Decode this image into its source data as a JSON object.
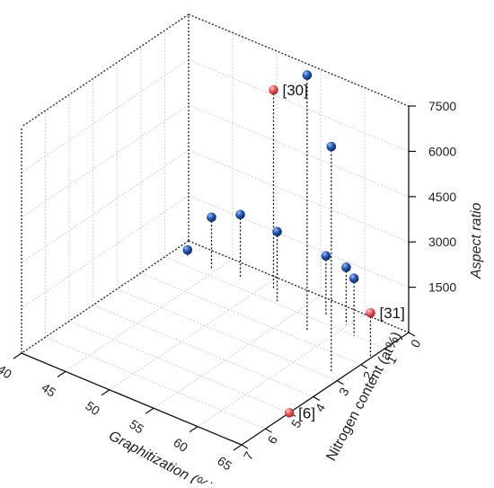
{
  "chart_data": {
    "type": "scatter",
    "title": "",
    "xlabel": "Graphitization (%)",
    "ylabel": "Nitrogen content (at%)",
    "zlabel": "Aspect ratio",
    "xlim": [
      40,
      65
    ],
    "ylim": [
      0,
      7
    ],
    "zlim": [
      0,
      7500
    ],
    "x_ticks": [
      "40",
      "45",
      "50",
      "55",
      "60",
      "65"
    ],
    "y_ticks": [
      "0",
      "1",
      "2",
      "3",
      "4",
      "5",
      "6",
      "7"
    ],
    "z_ticks": [
      "1500",
      "3000",
      "4500",
      "6000",
      "7500"
    ],
    "grid": true,
    "series": [
      {
        "color": "#1f4e9c",
        "points": [
          {
            "x": 41.5,
            "y": 0.6,
            "z": 200
          },
          {
            "x": 44.5,
            "y": 0.7,
            "z": 1700
          },
          {
            "x": 47.5,
            "y": 0.6,
            "z": 2100
          },
          {
            "x": 52.5,
            "y": 0.9,
            "z": 2300
          },
          {
            "x": 57.5,
            "y": 0.7,
            "z": 2000
          },
          {
            "x": 57.8,
            "y": 1.6,
            "z": 8500
          },
          {
            "x": 59.8,
            "y": 0.7,
            "z": 1900
          },
          {
            "x": 61.5,
            "y": 1.0,
            "z": 1900
          },
          {
            "x": 63.8,
            "y": 2.8,
            "z": 7500
          }
        ]
      },
      {
        "color": "#e05050",
        "points": [
          {
            "x": 51.0,
            "y": 0.5,
            "z": 6600
          },
          {
            "x": 65.0,
            "y": 1.6,
            "z": 1500
          },
          {
            "x": 65.0,
            "y": 5.0,
            "z": 0
          }
        ]
      }
    ],
    "annotations": [
      "[30]",
      "[31]",
      "[6]"
    ]
  }
}
